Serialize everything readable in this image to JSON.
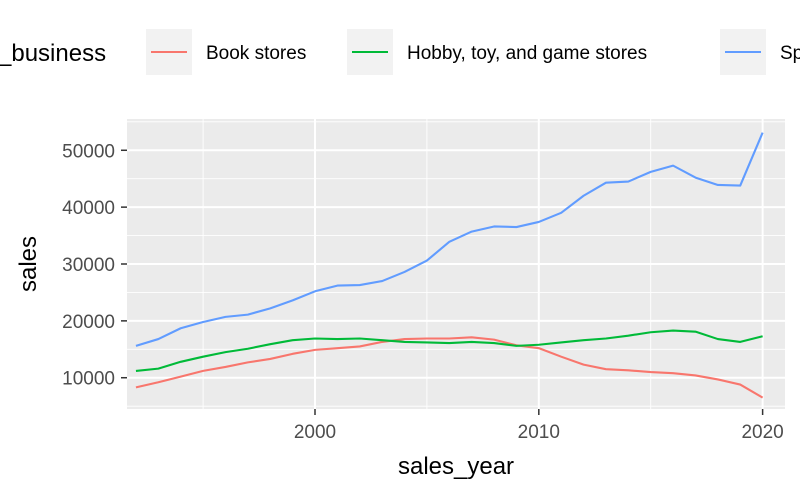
{
  "chart_data": {
    "type": "line",
    "title": "",
    "xlabel": "sales_year",
    "ylabel": "sales",
    "xlim": [
      1991.6,
      2021.0
    ],
    "ylim": [
      4500,
      55500
    ],
    "xticks": [
      2000,
      2010,
      2020
    ],
    "yticks": [
      10000,
      20000,
      30000,
      40000,
      50000
    ],
    "grid": true,
    "legend": {
      "title": "_business",
      "placement": "top"
    },
    "x": [
      1992,
      1993,
      1994,
      1995,
      1996,
      1997,
      1998,
      1999,
      2000,
      2001,
      2002,
      2003,
      2004,
      2005,
      2006,
      2007,
      2008,
      2009,
      2010,
      2011,
      2012,
      2013,
      2014,
      2015,
      2016,
      2017,
      2018,
      2019,
      2020
    ],
    "series": [
      {
        "name": "Book stores",
        "color": "#F8766D",
        "values": [
          8300,
          9200,
          10200,
          11200,
          11900,
          12700,
          13300,
          14200,
          14900,
          15200,
          15500,
          16300,
          16800,
          16900,
          16900,
          17100,
          16700,
          15700,
          15200,
          13700,
          12300,
          11500,
          11300,
          11000,
          10800,
          10400,
          9700,
          8800,
          6500
        ]
      },
      {
        "name": "Hobby, toy, and game stores",
        "color": "#00BA38",
        "values": [
          11200,
          11600,
          12800,
          13700,
          14500,
          15100,
          15900,
          16600,
          16900,
          16800,
          16900,
          16600,
          16300,
          16200,
          16100,
          16300,
          16100,
          15600,
          15800,
          16200,
          16600,
          16900,
          17400,
          18000,
          18300,
          18100,
          16800,
          16300,
          17300
        ]
      },
      {
        "name": "Sp",
        "color": "#619CFF",
        "values": [
          15600,
          16800,
          18700,
          19800,
          20700,
          21100,
          22200,
          23600,
          25200,
          26200,
          26300,
          27000,
          28600,
          30600,
          33900,
          35700,
          36600,
          36500,
          37400,
          39000,
          42000,
          44300,
          44500,
          46200,
          47300,
          45200,
          43900,
          43800,
          53100
        ]
      }
    ]
  }
}
